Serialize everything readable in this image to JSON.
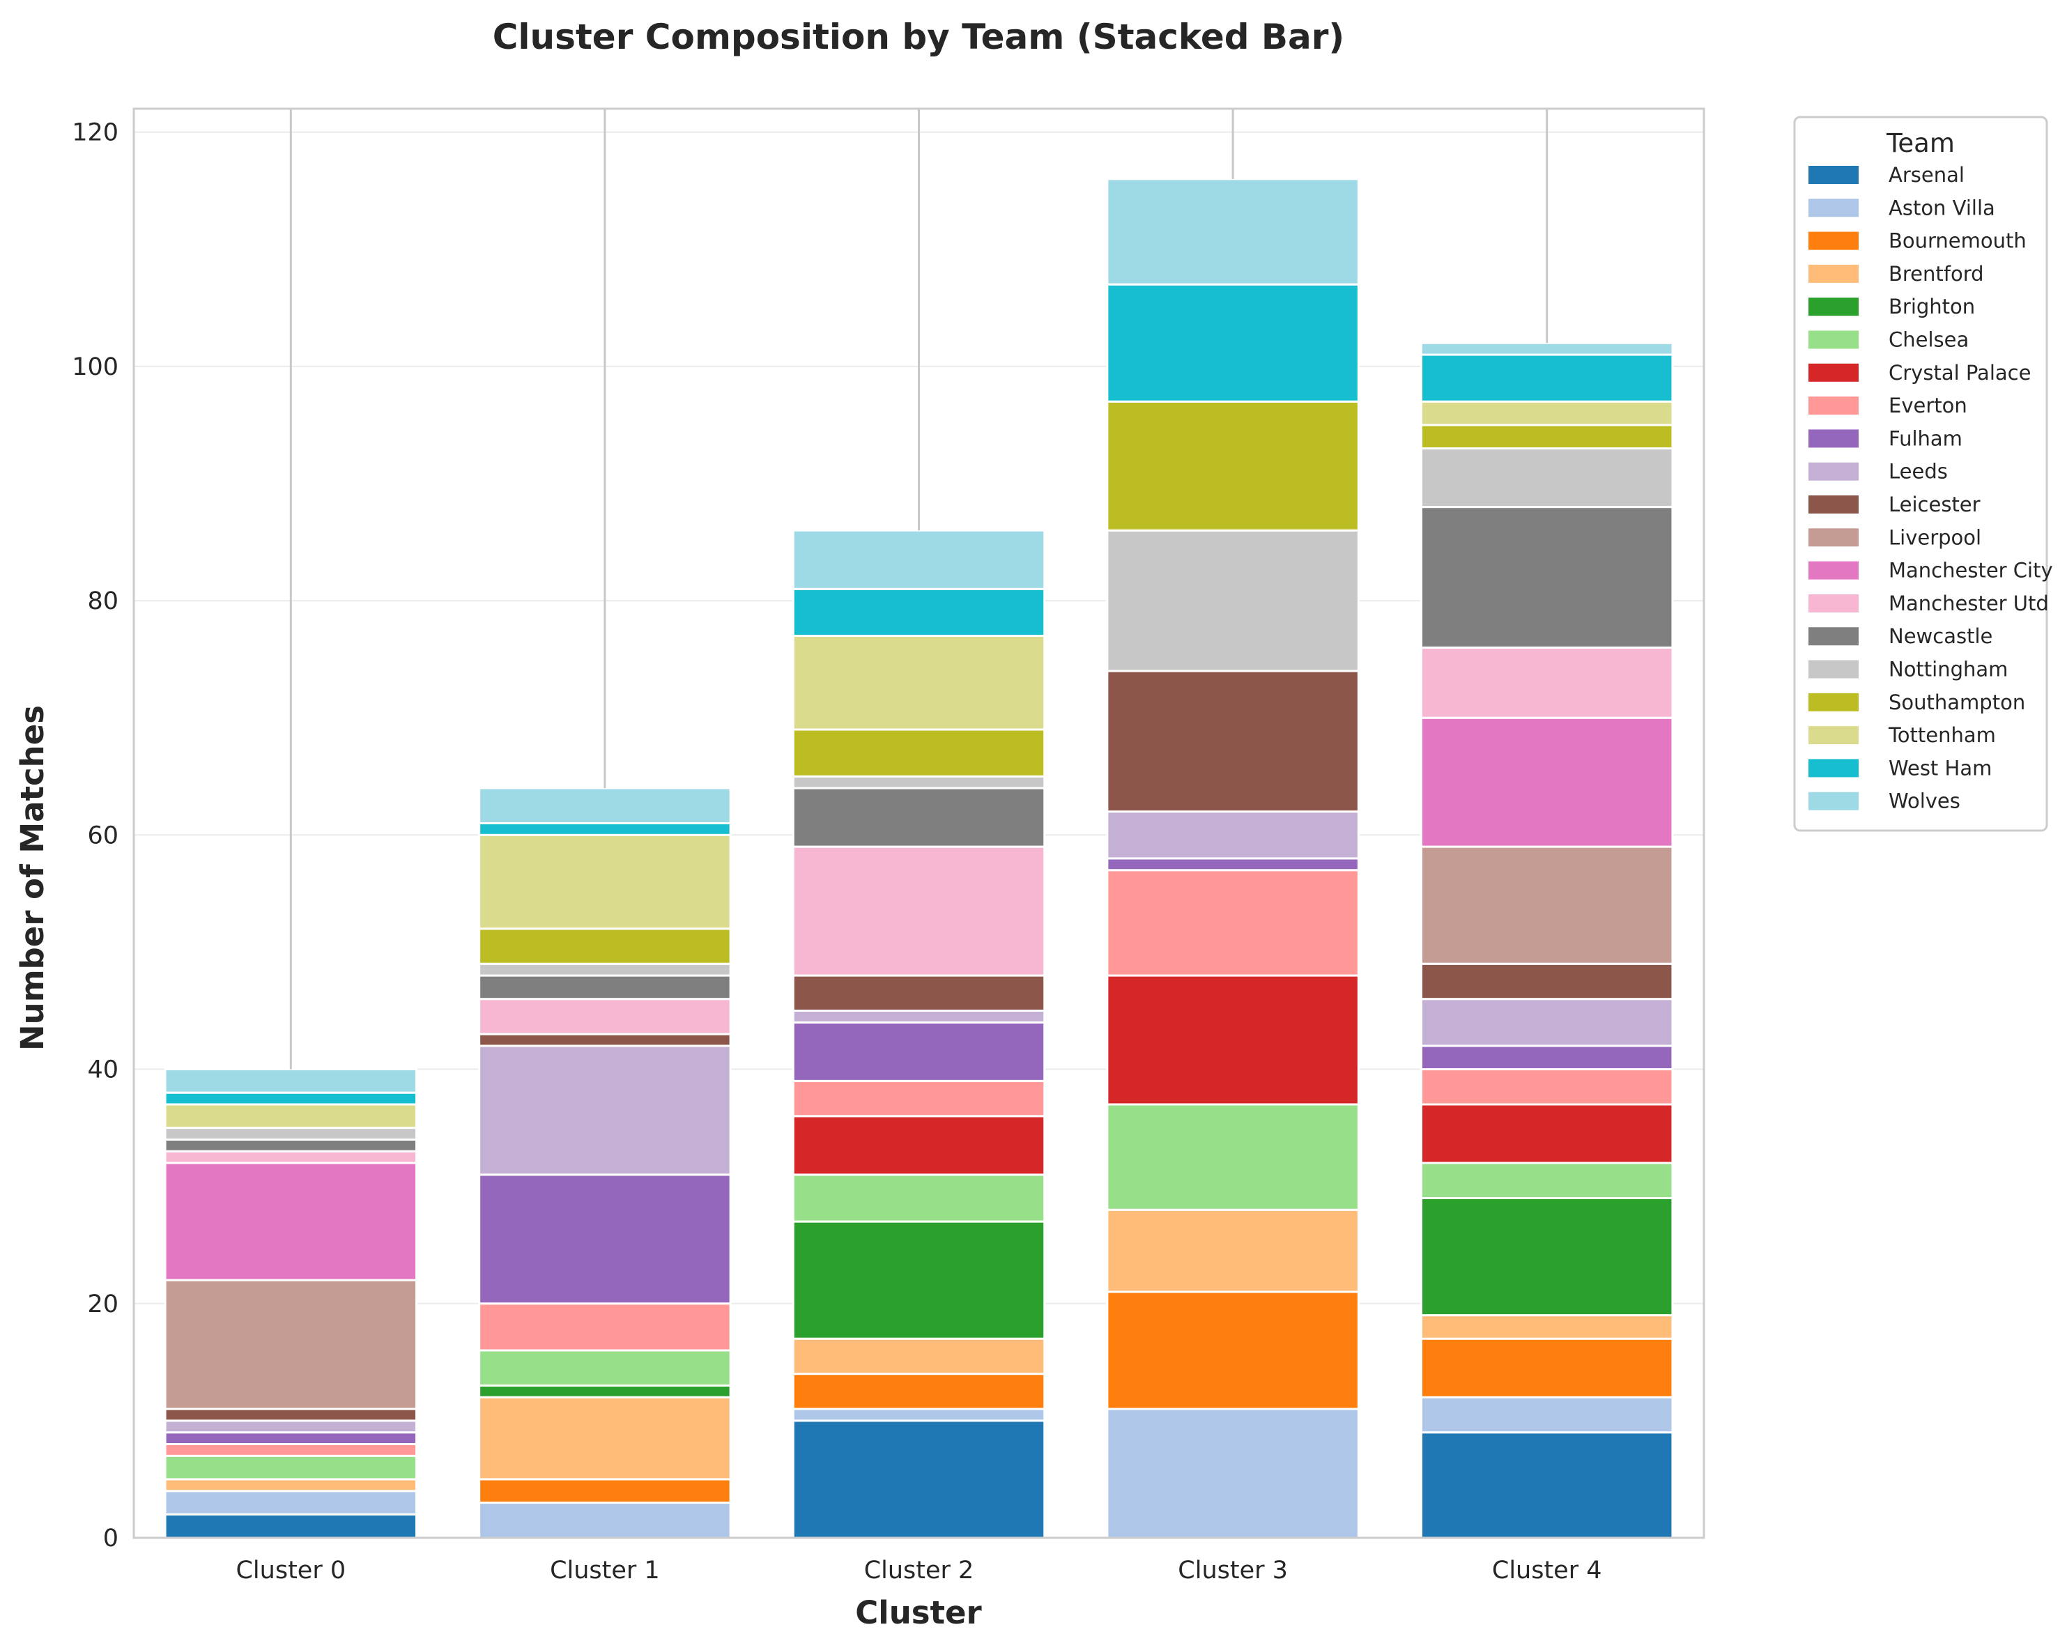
{
  "chart_data": {
    "type": "bar",
    "stacked": true,
    "title": "Cluster Composition by Team (Stacked Bar)",
    "xlabel": "Cluster",
    "ylabel": "Number of Matches",
    "ylim": [
      0,
      122
    ],
    "yticks": [
      0,
      20,
      40,
      60,
      80,
      100,
      120
    ],
    "grid": true,
    "legend_title": "Team",
    "legend_position": "outside-right-top",
    "categories": [
      "Cluster 0",
      "Cluster 1",
      "Cluster 2",
      "Cluster 3",
      "Cluster 4"
    ],
    "series": [
      {
        "name": "Arsenal",
        "color": "#1f77b4",
        "values": [
          2,
          0,
          10,
          0,
          9
        ]
      },
      {
        "name": "Aston Villa",
        "color": "#aec7e8",
        "values": [
          2,
          3,
          1,
          11,
          3
        ]
      },
      {
        "name": "Bournemouth",
        "color": "#ff7f0e",
        "values": [
          0,
          2,
          3,
          10,
          5
        ]
      },
      {
        "name": "Brentford",
        "color": "#ffbb78",
        "values": [
          1,
          7,
          3,
          7,
          2
        ]
      },
      {
        "name": "Brighton",
        "color": "#2ca02c",
        "values": [
          0,
          1,
          10,
          0,
          10
        ]
      },
      {
        "name": "Chelsea",
        "color": "#98df8a",
        "values": [
          2,
          3,
          4,
          9,
          3
        ]
      },
      {
        "name": "Crystal Palace",
        "color": "#d62728",
        "values": [
          0,
          0,
          5,
          11,
          5
        ]
      },
      {
        "name": "Everton",
        "color": "#ff9896",
        "values": [
          1,
          4,
          3,
          9,
          3
        ]
      },
      {
        "name": "Fulham",
        "color": "#9467bd",
        "values": [
          1,
          11,
          5,
          1,
          2
        ]
      },
      {
        "name": "Leeds",
        "color": "#c5b0d5",
        "values": [
          1,
          11,
          1,
          4,
          4
        ]
      },
      {
        "name": "Leicester",
        "color": "#8c564b",
        "values": [
          1,
          1,
          3,
          12,
          3
        ]
      },
      {
        "name": "Liverpool",
        "color": "#c49c94",
        "values": [
          11,
          0,
          0,
          0,
          10
        ]
      },
      {
        "name": "Manchester City",
        "color": "#e377c2",
        "values": [
          10,
          0,
          0,
          0,
          11
        ]
      },
      {
        "name": "Manchester Utd",
        "color": "#f7b6d2",
        "values": [
          1,
          3,
          11,
          0,
          6
        ]
      },
      {
        "name": "Newcastle",
        "color": "#7f7f7f",
        "values": [
          1,
          2,
          5,
          0,
          12
        ]
      },
      {
        "name": "Nottingham",
        "color": "#c7c7c7",
        "values": [
          1,
          1,
          1,
          12,
          5
        ]
      },
      {
        "name": "Southampton",
        "color": "#bcbd22",
        "values": [
          0,
          3,
          4,
          11,
          2
        ]
      },
      {
        "name": "Tottenham",
        "color": "#dbdb8d",
        "values": [
          2,
          8,
          8,
          0,
          2
        ]
      },
      {
        "name": "West Ham",
        "color": "#17becf",
        "values": [
          1,
          1,
          4,
          10,
          4
        ]
      },
      {
        "name": "Wolves",
        "color": "#9edae5",
        "values": [
          2,
          3,
          5,
          9,
          1
        ]
      }
    ]
  }
}
